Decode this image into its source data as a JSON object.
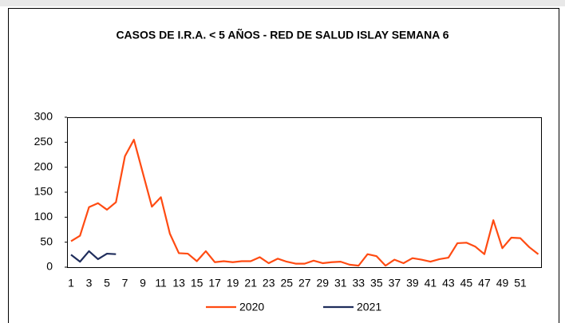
{
  "chart_data": {
    "type": "line",
    "title": "CASOS DE I.R.A. < 5 AÑOS - RED DE SALUD ISLAY SEMANA 6",
    "categories": [
      1,
      null,
      3,
      null,
      5,
      null,
      7,
      null,
      9,
      null,
      11,
      null,
      13,
      null,
      15,
      null,
      17,
      null,
      19,
      null,
      21,
      null,
      23,
      null,
      25,
      null,
      27,
      null,
      29,
      null,
      31,
      null,
      33,
      null,
      35,
      null,
      37,
      null,
      39,
      null,
      41,
      null,
      43,
      null,
      45,
      null,
      47,
      null,
      49,
      null,
      51,
      null,
      null
    ],
    "series": [
      {
        "name": "2020",
        "color": "#ff4b12",
        "values": [
          52,
          63,
          120,
          128,
          115,
          130,
          222,
          255,
          188,
          121,
          140,
          67,
          28,
          27,
          12,
          32,
          10,
          12,
          10,
          12,
          12,
          20,
          8,
          17,
          11,
          7,
          7,
          13,
          8,
          10,
          11,
          5,
          3,
          26,
          22,
          3,
          15,
          8,
          18,
          15,
          11,
          16,
          19,
          48,
          49,
          41,
          26,
          94,
          38,
          59,
          58,
          40,
          26
        ]
      },
      {
        "name": "2021",
        "color": "#1f2d5c",
        "values": [
          25,
          11,
          32,
          16,
          27,
          26,
          null,
          null,
          null,
          null,
          null,
          null,
          null,
          null,
          null,
          null,
          null,
          null,
          null,
          null,
          null,
          null,
          null,
          null,
          null,
          null,
          null,
          null,
          null,
          null,
          null,
          null,
          null,
          null,
          null,
          null,
          null,
          null,
          null,
          null,
          null,
          null,
          null,
          null,
          null,
          null,
          null,
          null,
          null,
          null,
          null,
          null,
          null
        ]
      }
    ],
    "ylim": [
      0,
      300
    ],
    "yticks": [
      0,
      50,
      100,
      150,
      200,
      250,
      300
    ],
    "grid": false,
    "legend": "bottom"
  }
}
